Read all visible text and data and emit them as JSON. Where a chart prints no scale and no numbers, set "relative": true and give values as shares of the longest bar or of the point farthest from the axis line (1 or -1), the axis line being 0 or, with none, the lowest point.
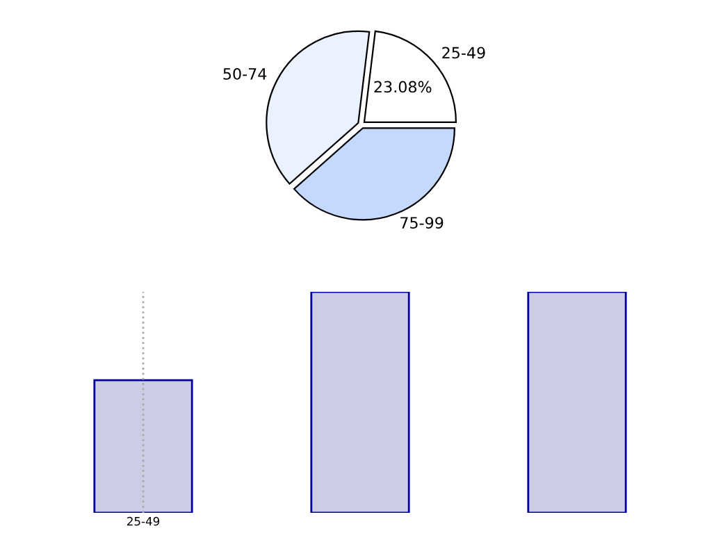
{
  "chart_data": [
    {
      "type": "pie",
      "categories": [
        "25-49",
        "50-74",
        "75-99"
      ],
      "values": [
        23.08,
        38.46,
        38.46
      ],
      "colors": [
        "#ffffff",
        "#eaf1ff",
        "#c5d9ff"
      ],
      "value_labels": [
        "23.08%",
        null,
        null
      ]
    },
    {
      "type": "bar",
      "relative": true,
      "categories": [
        "25-49",
        null,
        null
      ],
      "values": [
        0.6,
        1,
        1
      ],
      "color": "#cccce6",
      "ref_lines": [
        {
          "axis": "x",
          "value": "25-49",
          "color": "#aaaaaa",
          "line_style": "dotted"
        }
      ]
    }
  ]
}
